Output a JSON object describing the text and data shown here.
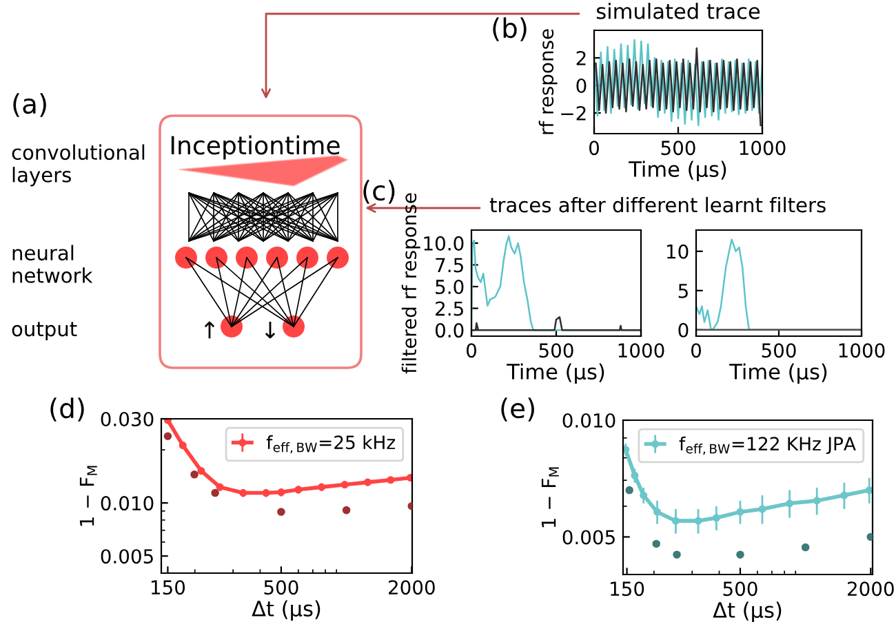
{
  "chart_data": [
    {
      "type": "other",
      "annotations": [
        "(a)",
        "convolutional\nlayers",
        "neural\nnetwork",
        "output",
        "Inceptiontime",
        "↑",
        "↓"
      ]
    },
    {
      "type": "line",
      "title": "simulated trace",
      "xlabel": "Time (μs)",
      "ylabel": "rf response",
      "annotations": [
        "(b)"
      ],
      "xlim": [
        0,
        1000
      ],
      "xticks": [
        0,
        500,
        1000
      ],
      "ylim": [
        -3.5,
        4.0
      ],
      "yticks": [
        {
          "value": -2,
          "label": "−2"
        },
        0,
        2
      ],
      "legend": false,
      "grid": false,
      "series": [
        {
          "color": "#5bc4c9",
          "x": [
            0,
            20,
            40,
            60,
            80,
            100,
            120,
            140,
            160,
            180,
            200,
            220,
            240,
            260,
            280,
            300,
            320,
            340,
            360,
            380,
            400,
            420,
            440,
            460,
            480,
            500,
            520,
            540,
            560,
            580,
            600,
            620,
            640,
            660,
            680,
            700,
            720,
            740,
            760,
            780,
            800,
            820,
            840,
            860,
            880,
            900,
            920,
            940,
            960,
            980,
            1000
          ],
          "values": [
            2.0,
            -2.2,
            2.4,
            -1.8,
            2.8,
            -2.0,
            2.6,
            -1.5,
            3.0,
            -1.6,
            2.9,
            -1.4,
            3.3,
            -1.7,
            3.2,
            -1.3,
            3.0,
            -1.5,
            2.0,
            -2.3,
            1.8,
            -2.0,
            1.7,
            -2.6,
            1.9,
            -2.4,
            1.6,
            -2.8,
            1.8,
            -2.5,
            1.5,
            -2.9,
            1.7,
            -2.3,
            1.8,
            -2.2,
            1.6,
            -2.5,
            1.9,
            -2.0,
            1.7,
            -1.9,
            1.8,
            -2.1,
            1.6,
            -2.0,
            1.9,
            -1.8,
            1.7,
            -2.0,
            1.5
          ]
        },
        {
          "color": "#303030",
          "x": [
            10,
            30,
            50,
            70,
            90,
            110,
            130,
            150,
            170,
            190,
            210,
            230,
            250,
            270,
            290,
            310,
            330,
            350,
            370,
            390,
            410,
            430,
            450,
            470,
            490,
            510,
            530,
            550,
            570,
            590,
            610,
            630,
            650,
            670,
            690,
            710,
            730,
            750,
            770,
            790,
            810,
            830,
            850,
            870,
            890,
            910,
            930,
            950,
            970,
            990
          ],
          "values": [
            1.6,
            -1.8,
            1.5,
            -2.0,
            1.7,
            -1.6,
            1.8,
            -1.7,
            1.6,
            -1.9,
            1.9,
            -1.5,
            1.7,
            -1.8,
            1.5,
            -1.7,
            1.8,
            -1.6,
            1.9,
            -1.8,
            1.6,
            -1.7,
            1.8,
            -1.9,
            1.7,
            -1.6,
            1.9,
            -1.8,
            1.6,
            -1.7,
            2.7,
            -1.9,
            1.7,
            -1.6,
            1.8,
            -1.9,
            1.6,
            -1.7,
            1.8,
            -1.6,
            1.7,
            -1.8,
            1.9,
            -1.7,
            1.6,
            -1.8,
            1.7,
            -1.6,
            1.8,
            -2.9
          ]
        }
      ]
    },
    {
      "type": "line",
      "xlabel": "Time (μs)",
      "ylabel": "filtered rf response",
      "annotations": [
        "(c)",
        "traces after different learnt filters"
      ],
      "xlim": [
        0,
        1000
      ],
      "xticks": [
        0,
        500,
        1000
      ],
      "ylim": [
        -0.7,
        11.5
      ],
      "yticks": [
        {
          "value": 0,
          "label": "0.0"
        },
        {
          "value": 2.5,
          "label": "2.5"
        },
        {
          "value": 5,
          "label": "5.0"
        },
        {
          "value": 7.5,
          "label": "7.5"
        },
        {
          "value": 10,
          "label": "10.0"
        }
      ],
      "legend": false,
      "grid": false,
      "series": [
        {
          "color": "#5bc4c9",
          "x": [
            0,
            5,
            15,
            25,
            40,
            55,
            70,
            80,
            95,
            110,
            140,
            170,
            190,
            205,
            220,
            235,
            255,
            275,
            290,
            310,
            330,
            350,
            365,
            1000
          ],
          "values": [
            0,
            9.5,
            10.3,
            7,
            6,
            5.5,
            6.5,
            5,
            2.8,
            3.5,
            3.8,
            5,
            8,
            9.8,
            10.8,
            9.5,
            8.8,
            10,
            8.5,
            5.5,
            3.5,
            1,
            0,
            0
          ]
        },
        {
          "color": "#303030",
          "x": [
            0,
            25,
            30,
            40,
            490,
            500,
            520,
            535,
            875,
            880,
            885,
            1000
          ],
          "values": [
            0,
            0,
            0.8,
            0,
            0,
            1.2,
            1.5,
            0,
            0,
            0.5,
            0,
            0
          ]
        }
      ]
    },
    {
      "type": "line",
      "xlabel": "Time (μs)",
      "xlim": [
        0,
        1000
      ],
      "xticks": [
        0,
        500,
        1000
      ],
      "ylim": [
        -0.8,
        12.7
      ],
      "yticks": [
        0,
        5,
        10
      ],
      "legend": false,
      "grid": false,
      "series": [
        {
          "color": "#5bc4c9",
          "x": [
            0,
            20,
            35,
            50,
            70,
            90,
            100,
            130,
            150,
            180,
            200,
            215,
            240,
            260,
            280,
            300,
            320,
            1000
          ],
          "values": [
            3,
            2,
            3,
            1,
            2.5,
            0,
            0,
            1,
            3,
            8,
            10,
            11.5,
            10,
            10.5,
            8,
            3,
            0,
            0
          ]
        },
        {
          "color": "#505050",
          "x": [
            0,
            1000
          ],
          "values": [
            0,
            0
          ]
        }
      ]
    },
    {
      "type": "line",
      "xlabel": "Δt (μs)",
      "ylabel": "1 − F$_{M}$",
      "annotations": [
        "(d)"
      ],
      "log": "xy",
      "xlim": [
        140,
        2010
      ],
      "xticks": [
        150,
        500,
        2000
      ],
      "ylim": [
        0.004,
        0.03
      ],
      "yticks": [
        {
          "value": 0.005,
          "label": "0.005"
        },
        {
          "value": 0.01,
          "label": "0.010"
        },
        {
          "value": 0.03,
          "label": "0.030"
        }
      ],
      "legend": "top right",
      "grid": false,
      "series": [
        {
          "name": "f$_{eff,BW}$=25 kHz",
          "color": "#ff4444",
          "marker": "circle",
          "x": [
            150,
            176,
            214,
            261,
            334,
            426,
            500,
            600,
            768,
            982,
            1253,
            1600,
            1973
          ],
          "values": [
            0.0295,
            0.0212,
            0.0152,
            0.0123,
            0.0114,
            0.0114,
            0.0115,
            0.0119,
            0.0123,
            0.0127,
            0.0131,
            0.0135,
            0.0139
          ],
          "errors": [
            0.0006,
            0.0006,
            0.0006,
            0.0006,
            0.0006,
            0.0006,
            0.0006,
            0.0006,
            0.0006,
            0.0006,
            0.0006,
            0.0006,
            0.0006
          ]
        },
        {
          "type": "scatter",
          "color": "#a03030",
          "x": [
            150,
            199,
            248,
            500,
            1000,
            2000
          ],
          "values": [
            0.0239,
            0.0145,
            0.0114,
            0.0089,
            0.0091,
            0.0096
          ]
        }
      ]
    },
    {
      "type": "line",
      "xlabel": "Δt (μs)",
      "ylabel": "1 − F$_{M}$",
      "annotations": [
        "(e)"
      ],
      "log": "xy",
      "xlim": [
        144,
        2040
      ],
      "xticks": [
        150,
        500,
        2000
      ],
      "ylim": [
        0.004,
        0.01
      ],
      "yticks": [
        {
          "value": 0.005,
          "label": "0.005"
        },
        {
          "value": 0.01,
          "label": "0.010"
        }
      ],
      "legend": "top right",
      "grid": false,
      "series": [
        {
          "name": "f$_{eff,BW}$=122 KHz JPA",
          "color": "#6cc6c9",
          "marker": "circle",
          "x": [
            148,
            163,
            179,
            207,
            252,
            320,
            388,
            500,
            632,
            845,
            1129,
            1510,
            1970
          ],
          "values": [
            0.0084,
            0.0072,
            0.0064,
            0.0058,
            0.0055,
            0.0055,
            0.0056,
            0.0058,
            0.0059,
            0.0061,
            0.0062,
            0.0064,
            0.0066
          ],
          "errors": [
            0.0003,
            0.0003,
            0.0003,
            0.0004,
            0.0004,
            0.0004,
            0.0004,
            0.0004,
            0.0005,
            0.0005,
            0.0005,
            0.0005,
            0.0005
          ]
        },
        {
          "type": "scatter",
          "color": "#3f7a7a",
          "x": [
            154,
            205,
            255,
            500,
            1000,
            2000
          ],
          "values": [
            0.0066,
            0.0048,
            0.0045,
            0.0045,
            0.0047,
            0.005
          ]
        }
      ]
    }
  ]
}
